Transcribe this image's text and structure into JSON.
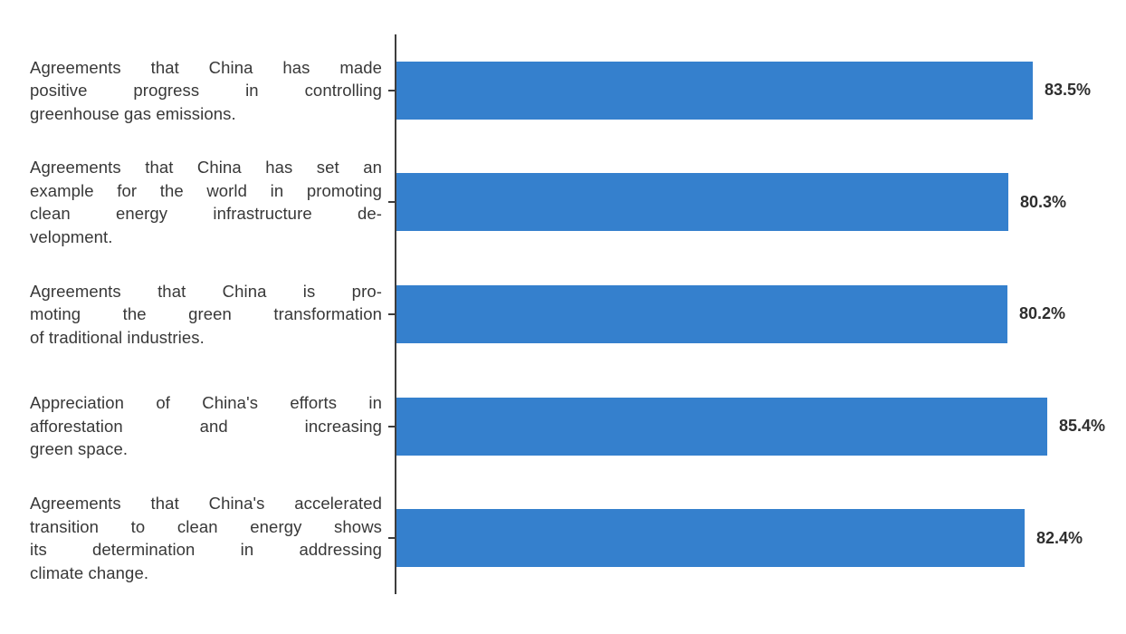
{
  "chart_data": {
    "type": "bar",
    "orientation": "horizontal",
    "title": "",
    "xlabel": "",
    "ylabel": "",
    "xlim": [
      0,
      100
    ],
    "grid": false,
    "legend": null,
    "bar_color": "#3580CD",
    "axis_color": "#3d3d3d",
    "label_color": "#383838",
    "value_color": "#2e2e2e",
    "categories": [
      "Agreements that China has made positive progress in controlling greenhouse gas emissions.",
      "Agreements that China has set an example for the world in promoting clean energy infrastructure development.",
      "Agreements that China is promoting the green transformation of traditional industries.",
      "Appreciation of China's efforts in afforestation and increasing green space.",
      "Agreements that China's accelerated transition to clean energy shows its determination in addressing climate change."
    ],
    "values": [
      83.5,
      80.3,
      80.2,
      85.4,
      82.4
    ],
    "value_labels": [
      "83.5%",
      "80.3%",
      "80.2%",
      "85.4%",
      "82.4%"
    ],
    "rows": [
      {
        "lines": [
          "Agreements that China has made",
          "positive progress in controlling",
          "greenhouse gas emissions."
        ]
      },
      {
        "lines": [
          "Agreements that China has set an",
          "example for the world in promoting",
          "clean energy infrastructure de-",
          "velopment."
        ]
      },
      {
        "lines": [
          "Agreements that China is pro-",
          "moting the green transformation",
          "of traditional industries."
        ]
      },
      {
        "lines": [
          "Appreciation of China's efforts in",
          "afforestation and increasing",
          "green space."
        ]
      },
      {
        "lines": [
          "Agreements that China's accelerated",
          "transition to clean energy shows",
          "its determination in addressing",
          "climate change."
        ]
      }
    ]
  }
}
